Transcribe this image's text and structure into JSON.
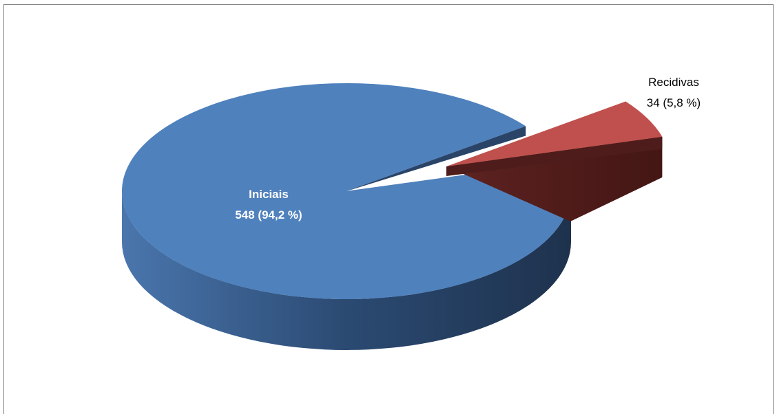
{
  "chart_data": {
    "type": "pie",
    "style": "3d-exploded",
    "slices": [
      {
        "name": "Iniciais",
        "value": 548,
        "percent_label": "548 (94,2 %)",
        "color": "#4f81bd",
        "exploded": false
      },
      {
        "name": "Recidivas",
        "value": 34,
        "percent_label": "34 (5,8 %)",
        "color": "#c0504d",
        "exploded": true
      }
    ],
    "title": "",
    "legend": "none",
    "colors": {
      "border": "#868686"
    }
  }
}
